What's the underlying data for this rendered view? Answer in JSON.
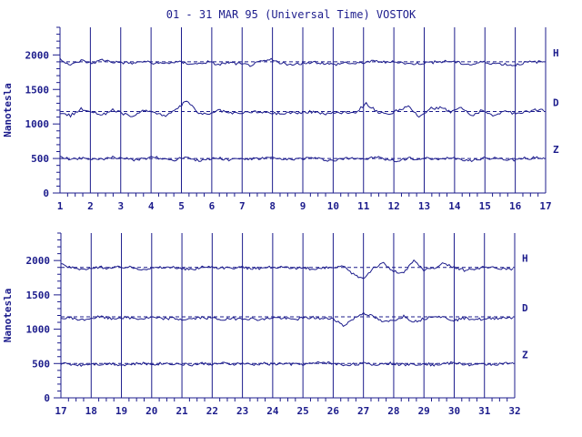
{
  "title": "01 - 31 MAR 95 (Universal Time) VOSTOK",
  "colors": {
    "ink": "#1c1c8c",
    "trace": "#1c1c8c",
    "background": "#ffffff"
  },
  "chart_data": [
    {
      "type": "line",
      "panel": "top",
      "ylabel": "Nanotesla",
      "ylim": [
        0,
        2400
      ],
      "yticks": [
        0,
        500,
        1000,
        1500,
        2000
      ],
      "xlim": [
        1,
        17
      ],
      "xticks": [
        "1",
        "2",
        "3",
        "4",
        "5",
        "6",
        "7",
        "8",
        "9",
        "10",
        "11",
        "12",
        "13",
        "14",
        "15",
        "16",
        "17"
      ],
      "grid": "vertical lines at each day",
      "series": [
        {
          "name": "H",
          "baseline": 1900,
          "values": [
            1950,
            1850,
            1920,
            1880,
            1930,
            1900,
            1890,
            1880,
            1910,
            1870,
            1880,
            1900,
            1880,
            1870,
            1900,
            1860,
            1890,
            1870,
            1850,
            1900,
            1930,
            1880,
            1850,
            1880,
            1900,
            1880,
            1860,
            1890,
            1870,
            1900,
            1910,
            1890,
            1900,
            1870,
            1880,
            1890,
            1900,
            1910,
            1880,
            1860,
            1900,
            1880,
            1870,
            1850,
            1890,
            1900
          ]
        },
        {
          "name": "D",
          "baseline": 1180,
          "values": [
            1150,
            1120,
            1220,
            1180,
            1130,
            1200,
            1150,
            1100,
            1210,
            1160,
            1120,
            1200,
            1340,
            1170,
            1130,
            1200,
            1160,
            1150,
            1180,
            1170,
            1160,
            1150,
            1170,
            1160,
            1180,
            1150,
            1160,
            1170,
            1170,
            1300,
            1180,
            1130,
            1200,
            1250,
            1100,
            1220,
            1240,
            1180,
            1240,
            1120,
            1200,
            1110,
            1190,
            1150,
            1180,
            1200
          ]
        },
        {
          "name": "Z",
          "baseline": 500,
          "values": [
            520,
            490,
            510,
            500,
            480,
            520,
            510,
            470,
            500,
            520,
            490,
            480,
            530,
            470,
            490,
            510,
            480,
            500,
            490,
            500,
            510,
            480,
            490,
            500,
            510,
            480,
            470,
            500,
            510,
            490,
            520,
            480,
            460,
            510,
            490,
            500,
            480,
            520,
            490,
            470,
            500,
            510,
            490,
            480,
            500,
            510
          ]
        }
      ]
    },
    {
      "type": "line",
      "panel": "bottom",
      "ylabel": "Nanotesla",
      "ylim": [
        0,
        2400
      ],
      "yticks": [
        0,
        500,
        1000,
        1500,
        2000
      ],
      "xlim": [
        17,
        32
      ],
      "xticks": [
        "17",
        "18",
        "19",
        "20",
        "21",
        "22",
        "23",
        "24",
        "25",
        "26",
        "27",
        "28",
        "29",
        "30",
        "31",
        "32"
      ],
      "grid": "vertical lines at each day",
      "series": [
        {
          "name": "H",
          "baseline": 1900,
          "values": [
            1940,
            1900,
            1870,
            1880,
            1900,
            1890,
            1910,
            1900,
            1880,
            1890,
            1900,
            1900,
            1880,
            1870,
            1900,
            1910,
            1890,
            1890,
            1900,
            1880,
            1890,
            1910,
            1900,
            1880,
            1900,
            1870,
            1890,
            1900,
            1910,
            1800,
            1740,
            1900,
            1960,
            1840,
            1820,
            2000,
            1860,
            1890,
            1960,
            1900,
            1860,
            1880,
            1900,
            1890,
            1880
          ]
        },
        {
          "name": "D",
          "baseline": 1180,
          "values": [
            1150,
            1170,
            1130,
            1160,
            1180,
            1150,
            1170,
            1160,
            1150,
            1170,
            1150,
            1160,
            1140,
            1150,
            1170,
            1160,
            1140,
            1150,
            1160,
            1150,
            1140,
            1170,
            1160,
            1140,
            1160,
            1170,
            1150,
            1160,
            1050,
            1150,
            1240,
            1180,
            1100,
            1130,
            1190,
            1110,
            1150,
            1200,
            1170,
            1130,
            1160,
            1150,
            1140,
            1160,
            1170
          ]
        },
        {
          "name": "Z",
          "baseline": 500,
          "values": [
            500,
            490,
            480,
            500,
            490,
            500,
            480,
            490,
            500,
            490,
            500,
            500,
            490,
            480,
            500,
            490,
            500,
            490,
            500,
            480,
            500,
            490,
            500,
            490,
            490,
            500,
            520,
            500,
            480,
            490,
            500,
            480,
            500,
            500,
            480,
            490,
            500,
            480,
            500,
            510,
            490,
            480,
            490,
            490,
            500
          ]
        }
      ]
    }
  ]
}
